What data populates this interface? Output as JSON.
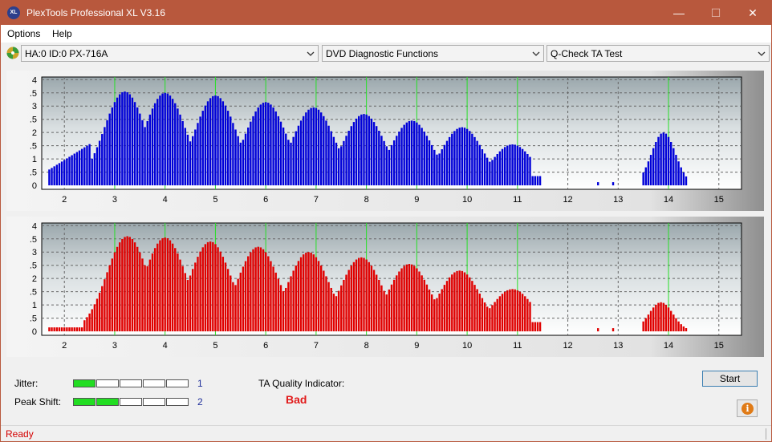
{
  "window": {
    "title": "PlexTools Professional XL V3.16",
    "icon_text": "XL"
  },
  "titlebar_buttons": {
    "minimize": "—",
    "maximize": "☐",
    "close": "✕"
  },
  "menu": {
    "items": [
      "Options",
      "Help"
    ]
  },
  "toolbar": {
    "drive_select": "HA:0 ID:0  PX-716A",
    "function_select": "DVD Diagnostic Functions",
    "test_select": "Q-Check TA Test"
  },
  "chart_data": [
    {
      "type": "bar",
      "name": "land",
      "color": "#0000d8",
      "x_ticks": [
        "2",
        "3",
        "4",
        "5",
        "6",
        "7",
        "8",
        "9",
        "10",
        "11",
        "12",
        "13",
        "14",
        "15"
      ],
      "y_ticks": [
        "0",
        "0.5",
        "1",
        "1.5",
        "2",
        "2.5",
        "3",
        "3.5",
        "4"
      ],
      "xlim": [
        1.55,
        15.45
      ],
      "ylim": [
        -0.15,
        4.1
      ],
      "grid": true,
      "peaks": [
        {
          "x": 3.2,
          "y": 3.55
        },
        {
          "x": 4.0,
          "y": 3.5
        },
        {
          "x": 5.0,
          "y": 3.4
        },
        {
          "x": 6.0,
          "y": 3.15
        },
        {
          "x": 6.95,
          "y": 2.95
        },
        {
          "x": 7.95,
          "y": 2.7
        },
        {
          "x": 8.9,
          "y": 2.45
        },
        {
          "x": 9.9,
          "y": 2.2
        },
        {
          "x": 10.9,
          "y": 1.55
        },
        {
          "x": 13.9,
          "y": 2.0
        }
      ]
    },
    {
      "type": "bar",
      "name": "pit",
      "color": "#e00000",
      "x_ticks": [
        "2",
        "3",
        "4",
        "5",
        "6",
        "7",
        "8",
        "9",
        "10",
        "11",
        "12",
        "13",
        "14",
        "15"
      ],
      "y_ticks": [
        "0",
        "0.5",
        "1",
        "1.5",
        "2",
        "2.5",
        "3",
        "3.5",
        "4"
      ],
      "xlim": [
        1.55,
        15.45
      ],
      "ylim": [
        -0.15,
        4.1
      ],
      "grid": true,
      "peaks": [
        {
          "x": 3.25,
          "y": 3.6
        },
        {
          "x": 4.0,
          "y": 3.55
        },
        {
          "x": 4.9,
          "y": 3.4
        },
        {
          "x": 5.85,
          "y": 3.2
        },
        {
          "x": 6.85,
          "y": 3.0
        },
        {
          "x": 7.9,
          "y": 2.8
        },
        {
          "x": 8.85,
          "y": 2.55
        },
        {
          "x": 9.85,
          "y": 2.3
        },
        {
          "x": 10.9,
          "y": 1.6
        },
        {
          "x": 13.85,
          "y": 1.1
        }
      ]
    }
  ],
  "results": {
    "jitter_label": "Jitter:",
    "jitter_value": "1",
    "jitter_level": 1,
    "peak_shift_label": "Peak Shift:",
    "peak_shift_value": "2",
    "peak_shift_level": 2,
    "meter_segments": 5,
    "ta_quality_label": "TA Quality Indicator:",
    "ta_quality_value": "Bad"
  },
  "buttons": {
    "start": "Start"
  },
  "status": {
    "text": "Ready"
  }
}
